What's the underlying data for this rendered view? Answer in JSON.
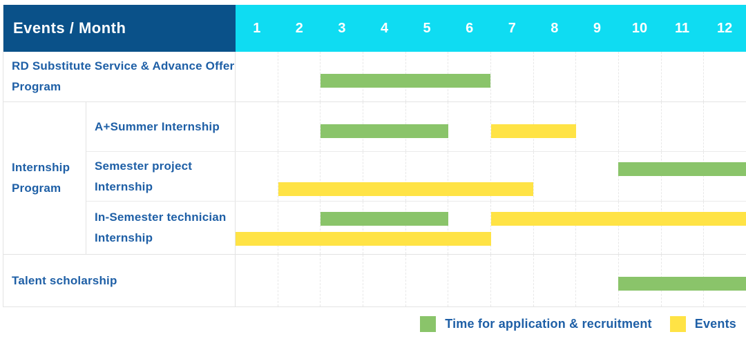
{
  "header": {
    "row_label": "Events / Month",
    "months": [
      "1",
      "2",
      "3",
      "4",
      "5",
      "6",
      "7",
      "8",
      "9",
      "10",
      "11",
      "12"
    ]
  },
  "colors": {
    "header_bg": "#0A5189",
    "months_bg": "#0FDCF2",
    "label_text": "#1E5FA6",
    "application_bar": "#8AC46A",
    "event_bar": "#FFE345"
  },
  "chart_data": {
    "type": "bar",
    "subtype": "gantt",
    "title": "Events / Month",
    "x_categories": [
      "1",
      "2",
      "3",
      "4",
      "5",
      "6",
      "7",
      "8",
      "9",
      "10",
      "11",
      "12"
    ],
    "x_range": [
      1,
      12
    ],
    "grid": true,
    "group_label": "Internship Program",
    "rows": [
      {
        "group": null,
        "label": "RD Substitute Service & Advance Offer Program",
        "bars": [
          {
            "kind": "application",
            "start": 3,
            "end": 6,
            "line": "single"
          }
        ]
      },
      {
        "group": "Internship Program",
        "label": "A+Summer Internship",
        "bars": [
          {
            "kind": "application",
            "start": 3,
            "end": 5,
            "line": "single"
          },
          {
            "kind": "event",
            "start": 7,
            "end": 8,
            "line": "single"
          }
        ]
      },
      {
        "group": "Internship Program",
        "label": "Semester project Internship",
        "bars": [
          {
            "kind": "application",
            "start": 10,
            "end": 12,
            "line": "upper"
          },
          {
            "kind": "event",
            "start": 2,
            "end": 7,
            "line": "lower"
          }
        ]
      },
      {
        "group": "Internship Program",
        "label": "In-Semester technician Internship",
        "bars": [
          {
            "kind": "application",
            "start": 3,
            "end": 5,
            "line": "upper"
          },
          {
            "kind": "event",
            "start": 7,
            "end": 12,
            "line": "upper"
          },
          {
            "kind": "event",
            "start": 1,
            "end": 6,
            "line": "lower"
          }
        ]
      },
      {
        "group": null,
        "label": "Talent scholarship",
        "bars": [
          {
            "kind": "application",
            "start": 10,
            "end": 12,
            "line": "single"
          }
        ]
      }
    ],
    "legend": [
      {
        "key": "application",
        "label": "Time for application & recruitment",
        "color": "#8AC46A"
      },
      {
        "key": "event",
        "label": "Events",
        "color": "#FFE345"
      }
    ],
    "legend_position": "bottom-right"
  }
}
